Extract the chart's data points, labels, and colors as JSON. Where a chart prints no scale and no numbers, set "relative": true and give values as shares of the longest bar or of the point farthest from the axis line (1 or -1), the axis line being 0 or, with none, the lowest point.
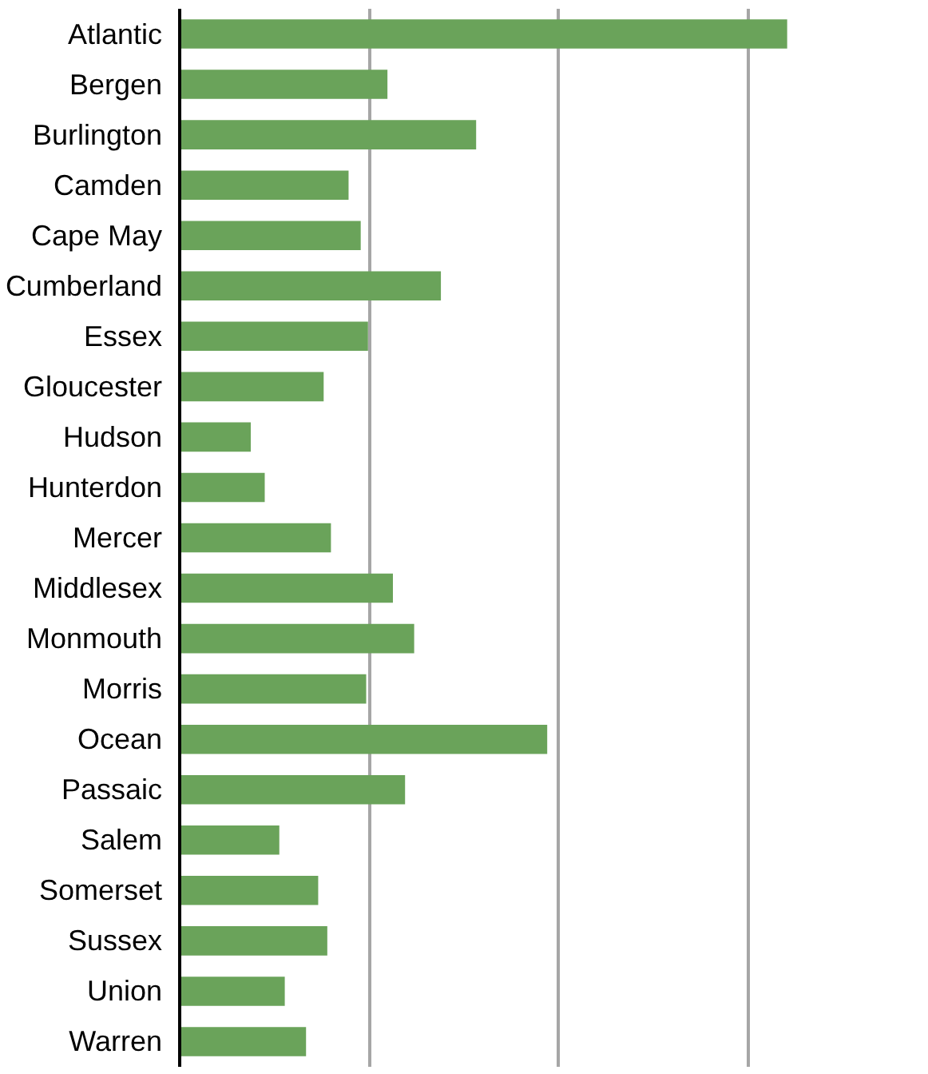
{
  "chart_data": {
    "type": "bar",
    "orientation": "horizontal",
    "relative": true,
    "grid": "x",
    "color": "#6aa35a",
    "categories": [
      "Atlantic",
      "Bergen",
      "Burlington",
      "Camden",
      "Cape May",
      "Cumberland",
      "Essex",
      "Gloucester",
      "Hudson",
      "Hunterdon",
      "Mercer",
      "Middlesex",
      "Monmouth",
      "Morris",
      "Ocean",
      "Passaic",
      "Salem",
      "Somerset",
      "Sussex",
      "Union",
      "Warren"
    ],
    "values": [
      1,
      0.342,
      0.488,
      0.278,
      0.298,
      0.43,
      0.31,
      0.237,
      0.117,
      0.14,
      0.249,
      0.351,
      0.386,
      0.307,
      0.605,
      0.371,
      0.164,
      0.228,
      0.243,
      0.173,
      0.208
    ]
  }
}
